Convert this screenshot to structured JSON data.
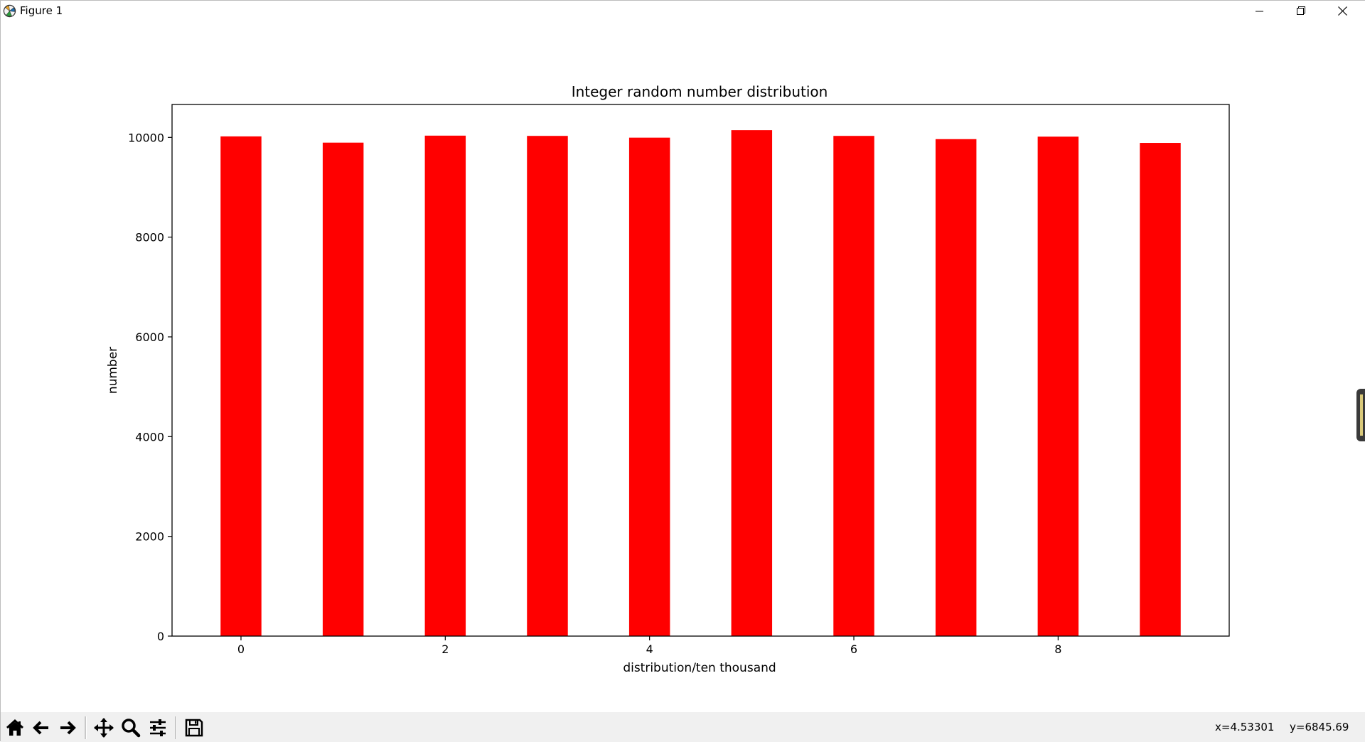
{
  "window": {
    "title": "Figure 1",
    "controls": [
      "minimize",
      "restore",
      "close"
    ]
  },
  "chart_data": {
    "type": "bar",
    "title": "Integer random number distribution",
    "xlabel": "distribution/ten thousand",
    "ylabel": "number",
    "categories": [
      0,
      1,
      2,
      3,
      4,
      5,
      6,
      7,
      8,
      9
    ],
    "values": [
      10020,
      9895,
      10035,
      10030,
      9995,
      10145,
      10030,
      9965,
      10015,
      9890
    ],
    "bar_width": 0.4,
    "bar_color": "#ff0000",
    "xlim": [
      -0.675,
      9.675
    ],
    "ylim": [
      0,
      10660
    ],
    "xticks": [
      0,
      2,
      4,
      6,
      8
    ],
    "yticks": [
      0,
      2000,
      4000,
      6000,
      8000,
      10000
    ],
    "grid": false,
    "legend": "none"
  },
  "toolbar": {
    "buttons": [
      "home-icon",
      "back-arrow-icon",
      "forward-arrow-icon",
      "pan-icon",
      "zoom-icon",
      "configure-subplots-icon",
      "save-icon"
    ]
  },
  "status": {
    "x_readout": "x=4.53301",
    "y_readout": "y=6845.69"
  }
}
